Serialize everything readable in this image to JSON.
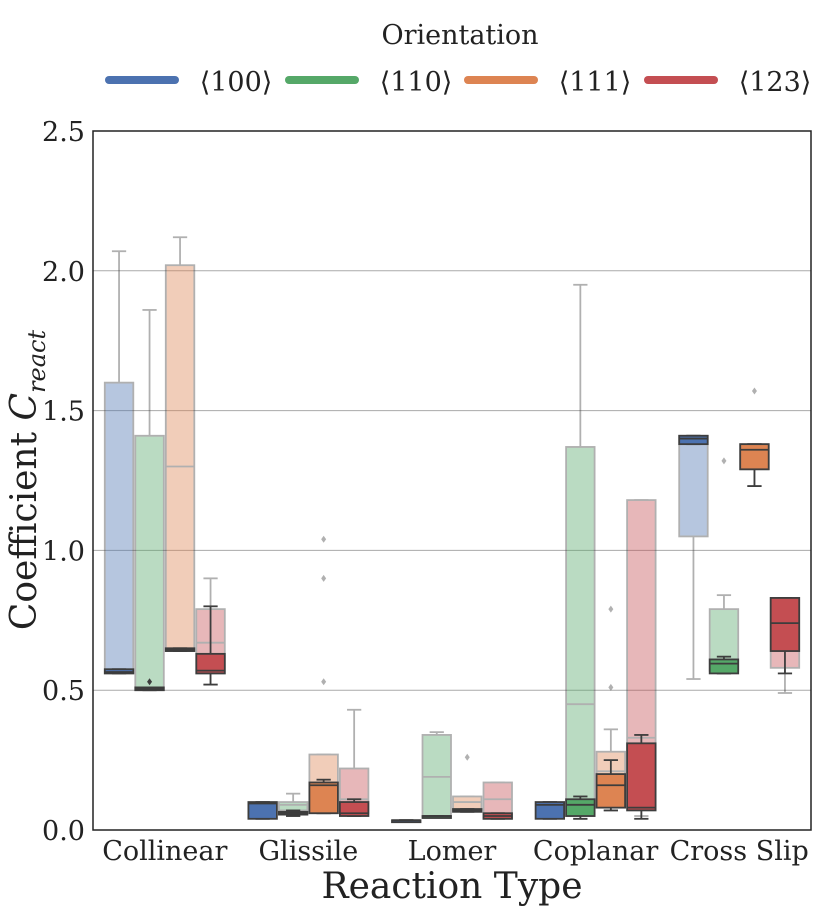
{
  "chart_data": {
    "type": "box",
    "title": "",
    "xlabel": "Reaction Type",
    "ylabel_prefix": "Coefficient ",
    "ylabel_symbol": "C",
    "ylabel_subscript": "react",
    "ylim": [
      0,
      2.5
    ],
    "yticks": [
      "0.0",
      "0.5",
      "1.0",
      "1.5",
      "2.0",
      "2.5"
    ],
    "grid": "horizontal",
    "legend_title": "Orientation",
    "legend_position": "top",
    "categories": [
      "Collinear",
      "Glissile",
      "Lomer",
      "Coplanar",
      "Cross Slip"
    ],
    "series": [
      {
        "name": "⟨100⟩",
        "color": "#4c72b0",
        "boxes": [
          {
            "category": "Collinear",
            "style": "faded",
            "whislo": 0.56,
            "q1": 0.56,
            "med": 0.57,
            "q3": 1.6,
            "whishi": 2.07,
            "fliers": []
          },
          {
            "category": "Collinear",
            "style": "solid",
            "whislo": 0.56,
            "q1": 0.56,
            "med": 0.565,
            "q3": 0.575,
            "whishi": 0.575,
            "fliers": []
          },
          {
            "category": "Glissile",
            "style": "solid",
            "whislo": 0.04,
            "q1": 0.04,
            "med": 0.095,
            "q3": 0.1,
            "whishi": 0.1,
            "fliers": []
          },
          {
            "category": "Lomer",
            "style": "solid",
            "whislo": 0.035,
            "q1": 0.035,
            "med": 0.035,
            "q3": 0.035,
            "whishi": 0.035,
            "fliers": []
          },
          {
            "category": "Coplanar",
            "style": "solid",
            "whislo": 0.04,
            "q1": 0.04,
            "med": 0.09,
            "q3": 0.1,
            "whishi": 0.1,
            "fliers": []
          },
          {
            "category": "Cross Slip",
            "style": "faded",
            "whislo": 0.54,
            "q1": 1.05,
            "med": 1.38,
            "q3": 1.41,
            "whishi": 1.41,
            "fliers": []
          },
          {
            "category": "Cross Slip",
            "style": "solid",
            "whislo": 1.38,
            "q1": 1.38,
            "med": 1.4,
            "q3": 1.41,
            "whishi": 1.41,
            "fliers": []
          }
        ]
      },
      {
        "name": "⟨110⟩",
        "color": "#55a868",
        "boxes": [
          {
            "category": "Collinear",
            "style": "faded",
            "whislo": 0.5,
            "q1": 0.5,
            "med": 0.51,
            "q3": 1.41,
            "whishi": 1.86,
            "fliers": []
          },
          {
            "category": "Collinear",
            "style": "solid",
            "whislo": 0.5,
            "q1": 0.5,
            "med": 0.505,
            "q3": 0.51,
            "whishi": 0.51,
            "fliers": [
              0.53
            ]
          },
          {
            "category": "Glissile",
            "style": "faded",
            "whislo": 0.05,
            "q1": 0.07,
            "med": 0.09,
            "q3": 0.1,
            "whishi": 0.13,
            "fliers": []
          },
          {
            "category": "Glissile",
            "style": "solid",
            "whislo": 0.05,
            "q1": 0.055,
            "med": 0.06,
            "q3": 0.065,
            "whishi": 0.07,
            "fliers": []
          },
          {
            "category": "Lomer",
            "style": "faded",
            "whislo": 0.05,
            "q1": 0.05,
            "med": 0.19,
            "q3": 0.34,
            "whishi": 0.35,
            "fliers": []
          },
          {
            "category": "Lomer",
            "style": "solid",
            "whislo": 0.05,
            "q1": 0.05,
            "med": 0.05,
            "q3": 0.05,
            "whishi": 0.05,
            "fliers": []
          },
          {
            "category": "Coplanar",
            "style": "faded",
            "whislo": 0.04,
            "q1": 0.05,
            "med": 0.45,
            "q3": 1.37,
            "whishi": 1.95,
            "fliers": []
          },
          {
            "category": "Coplanar",
            "style": "solid",
            "whislo": 0.04,
            "q1": 0.05,
            "med": 0.09,
            "q3": 0.11,
            "whishi": 0.12,
            "fliers": []
          },
          {
            "category": "Cross Slip",
            "style": "faded",
            "whislo": 0.56,
            "q1": 0.57,
            "med": 0.61,
            "q3": 0.79,
            "whishi": 0.84,
            "fliers": [
              1.32
            ]
          },
          {
            "category": "Cross Slip",
            "style": "solid",
            "whislo": 0.56,
            "q1": 0.56,
            "med": 0.595,
            "q3": 0.61,
            "whishi": 0.62,
            "fliers": []
          }
        ]
      },
      {
        "name": "⟨111⟩",
        "color": "#dd8452",
        "boxes": [
          {
            "category": "Collinear",
            "style": "faded",
            "whislo": 0.64,
            "q1": 0.64,
            "med": 1.3,
            "q3": 2.02,
            "whishi": 2.12,
            "fliers": []
          },
          {
            "category": "Collinear",
            "style": "solid",
            "whislo": 0.64,
            "q1": 0.64,
            "med": 0.645,
            "q3": 0.65,
            "whishi": 0.65,
            "fliers": []
          },
          {
            "category": "Glissile",
            "style": "faded",
            "whislo": 0.06,
            "q1": 0.06,
            "med": 0.17,
            "q3": 0.27,
            "whishi": 0.27,
            "fliers": [
              0.53,
              0.9,
              1.04
            ]
          },
          {
            "category": "Glissile",
            "style": "solid",
            "whislo": 0.06,
            "q1": 0.06,
            "med": 0.16,
            "q3": 0.17,
            "whishi": 0.18,
            "fliers": []
          },
          {
            "category": "Lomer",
            "style": "faded",
            "whislo": 0.07,
            "q1": 0.07,
            "med": 0.1,
            "q3": 0.12,
            "whishi": 0.12,
            "fliers": [
              0.26
            ]
          },
          {
            "category": "Lomer",
            "style": "solid",
            "whislo": 0.065,
            "q1": 0.065,
            "med": 0.07,
            "q3": 0.075,
            "whishi": 0.075,
            "fliers": []
          },
          {
            "category": "Coplanar",
            "style": "faded",
            "whislo": 0.07,
            "q1": 0.08,
            "med": 0.21,
            "q3": 0.28,
            "whishi": 0.36,
            "fliers": [
              0.51,
              0.79
            ]
          },
          {
            "category": "Coplanar",
            "style": "solid",
            "whislo": 0.07,
            "q1": 0.08,
            "med": 0.16,
            "q3": 0.2,
            "whishi": 0.25,
            "fliers": []
          },
          {
            "category": "Cross Slip",
            "style": "faded",
            "whislo": 1.23,
            "q1": 1.29,
            "med": 1.36,
            "q3": 1.38,
            "whishi": 1.38,
            "fliers": [
              1.57
            ]
          },
          {
            "category": "Cross Slip",
            "style": "solid",
            "whislo": 1.23,
            "q1": 1.29,
            "med": 1.36,
            "q3": 1.38,
            "whishi": 1.38,
            "fliers": []
          }
        ]
      },
      {
        "name": "⟨123⟩",
        "color": "#c44e52",
        "boxes": [
          {
            "category": "Collinear",
            "style": "faded",
            "whislo": 0.52,
            "q1": 0.56,
            "med": 0.67,
            "q3": 0.79,
            "whishi": 0.9,
            "fliers": []
          },
          {
            "category": "Collinear",
            "style": "solid",
            "whislo": 0.52,
            "q1": 0.56,
            "med": 0.57,
            "q3": 0.63,
            "whishi": 0.8,
            "fliers": []
          },
          {
            "category": "Glissile",
            "style": "faded",
            "whislo": 0.06,
            "q1": 0.06,
            "med": 0.11,
            "q3": 0.22,
            "whishi": 0.43,
            "fliers": []
          },
          {
            "category": "Glissile",
            "style": "solid",
            "whislo": 0.05,
            "q1": 0.05,
            "med": 0.06,
            "q3": 0.1,
            "whishi": 0.11,
            "fliers": []
          },
          {
            "category": "Lomer",
            "style": "faded",
            "whislo": 0.04,
            "q1": 0.04,
            "med": 0.11,
            "q3": 0.17,
            "whishi": 0.17,
            "fliers": []
          },
          {
            "category": "Lomer",
            "style": "solid",
            "whislo": 0.04,
            "q1": 0.04,
            "med": 0.05,
            "q3": 0.06,
            "whishi": 0.06,
            "fliers": []
          },
          {
            "category": "Coplanar",
            "style": "faded",
            "whislo": 0.05,
            "q1": 0.08,
            "med": 0.33,
            "q3": 1.18,
            "whishi": 1.18,
            "fliers": []
          },
          {
            "category": "Coplanar",
            "style": "solid",
            "whislo": 0.04,
            "q1": 0.07,
            "med": 0.08,
            "q3": 0.31,
            "whishi": 0.34,
            "fliers": []
          },
          {
            "category": "Cross Slip",
            "style": "faded",
            "whislo": 0.49,
            "q1": 0.58,
            "med": 0.73,
            "q3": 0.83,
            "whishi": 0.83,
            "fliers": []
          },
          {
            "category": "Cross Slip",
            "style": "solid",
            "whislo": 0.56,
            "q1": 0.64,
            "med": 0.74,
            "q3": 0.83,
            "whishi": 0.83,
            "fliers": []
          }
        ]
      }
    ]
  }
}
